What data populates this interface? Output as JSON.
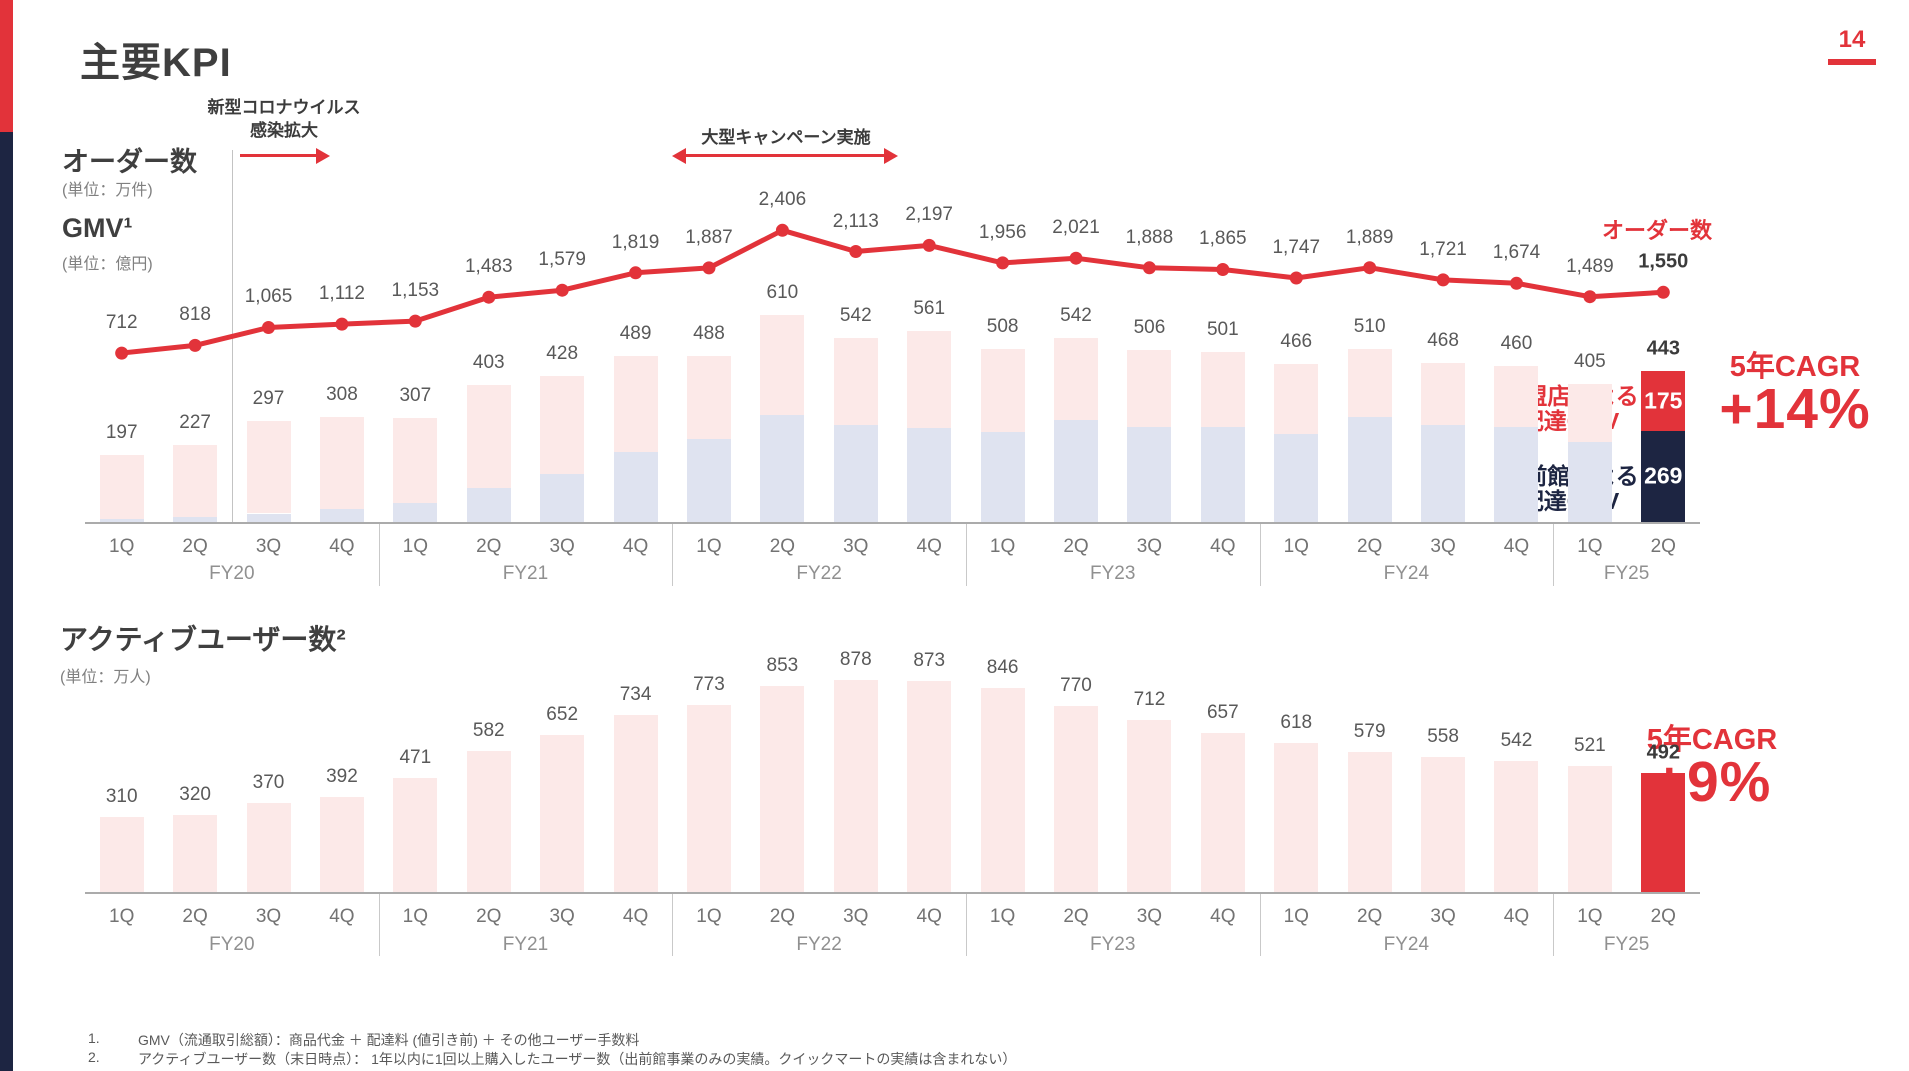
{
  "slide": {
    "title": "主要KPI",
    "page_number": "14"
  },
  "colors": {
    "accent_red": "#e2333a",
    "navy": "#1d2542",
    "bar_pink": "#fce9e8",
    "bar_lavender": "#dfe3f0",
    "value_gray": "#595959",
    "axis_gray": "#ababab"
  },
  "top_chart": {
    "orders_label": "オーダー数",
    "orders_unit": "(単位：万件)",
    "gmv_label": "GMV¹",
    "gmv_unit": "(単位：億円)",
    "legend_line": "オーダー数",
    "stack_legend_red": [
      "加盟店による",
      "配達GMV"
    ],
    "stack_legend_navy": [
      "出前館による",
      "配達GMV"
    ],
    "cagr_label": "5年CAGR",
    "cagr_value": "+14%"
  },
  "bottom_chart": {
    "title": "アクティブユーザー数²",
    "unit": "(単位：万人)",
    "cagr_label": "5年CAGR",
    "cagr_value": "+9%"
  },
  "annotations": {
    "covid_line1": "新型コロナウイルス",
    "covid_line2": "感染拡大",
    "campaign": "大型キャンペーン実施"
  },
  "footnotes": [
    {
      "num": "1.",
      "text": "GMV（流通取引総額）：商品代金 ＋ 配達料 (値引き前) ＋ その他ユーザー手数料"
    },
    {
      "num": "2.",
      "text": "アクティブユーザー数（末日時点）： 1年以内に1回以上購入したユーザー数（出前館事業のみの実績。クイックマートの実績は含まれない）"
    }
  ],
  "chart_data": [
    {
      "type": "bar",
      "subtype": "stacked-bars-with-line-overlay",
      "name": "orders-and-gmv",
      "categories": [
        "1Q",
        "2Q",
        "3Q",
        "4Q",
        "1Q",
        "2Q",
        "3Q",
        "4Q",
        "1Q",
        "2Q",
        "3Q",
        "4Q",
        "1Q",
        "2Q",
        "3Q",
        "4Q",
        "1Q",
        "2Q",
        "3Q",
        "4Q",
        "1Q",
        "2Q"
      ],
      "fiscal_years": [
        {
          "label": "FY20",
          "quarters": 4
        },
        {
          "label": "FY21",
          "quarters": 4
        },
        {
          "label": "FY22",
          "quarters": 4
        },
        {
          "label": "FY23",
          "quarters": 4
        },
        {
          "label": "FY24",
          "quarters": 4
        },
        {
          "label": "FY25",
          "quarters": 2
        }
      ],
      "line_series": {
        "name": "オーダー数",
        "unit": "万件",
        "values": [
          712,
          818,
          1065,
          1112,
          1153,
          1483,
          1579,
          1819,
          1887,
          2406,
          2113,
          2197,
          1956,
          2021,
          1888,
          1865,
          1747,
          1889,
          1721,
          1674,
          1489,
          1550
        ]
      },
      "bar_series": {
        "name": "GMV",
        "unit": "億円",
        "totals": [
          197,
          227,
          297,
          308,
          307,
          403,
          428,
          489,
          488,
          610,
          542,
          561,
          508,
          542,
          506,
          501,
          466,
          510,
          468,
          460,
          405,
          443
        ],
        "demaekan_bottom_estimated": [
          10,
          14,
          25,
          38,
          56,
          100,
          140,
          205,
          245,
          315,
          285,
          276,
          265,
          300,
          278,
          278,
          258,
          308,
          285,
          280,
          235,
          269
        ],
        "fy25_2q_split": {
          "kameiten_gmv": 175,
          "demaekan_gmv": 269
        }
      },
      "cagr": {
        "label": "5年CAGR",
        "value": "+14%"
      }
    },
    {
      "type": "bar",
      "name": "active-users",
      "title": "アクティブユーザー数",
      "unit": "万人",
      "categories": [
        "1Q",
        "2Q",
        "3Q",
        "4Q",
        "1Q",
        "2Q",
        "3Q",
        "4Q",
        "1Q",
        "2Q",
        "3Q",
        "4Q",
        "1Q",
        "2Q",
        "3Q",
        "4Q",
        "1Q",
        "2Q",
        "3Q",
        "4Q",
        "1Q",
        "2Q"
      ],
      "fiscal_years": [
        {
          "label": "FY20",
          "quarters": 4
        },
        {
          "label": "FY21",
          "quarters": 4
        },
        {
          "label": "FY22",
          "quarters": 4
        },
        {
          "label": "FY23",
          "quarters": 4
        },
        {
          "label": "FY24",
          "quarters": 4
        },
        {
          "label": "FY25",
          "quarters": 2
        }
      ],
      "values": [
        310,
        320,
        370,
        392,
        471,
        582,
        652,
        734,
        773,
        853,
        878,
        873,
        846,
        770,
        712,
        657,
        618,
        579,
        558,
        542,
        521,
        492
      ],
      "highlight_last": true,
      "cagr": {
        "label": "5年CAGR",
        "value": "+9%"
      }
    }
  ]
}
